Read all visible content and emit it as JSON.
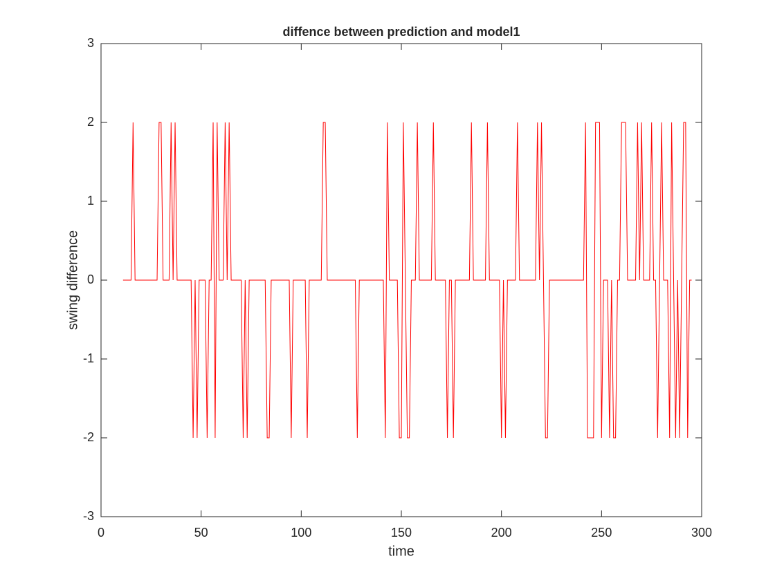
{
  "chart_data": {
    "type": "line",
    "title": "diffence between prediction and model1",
    "xlabel": "time",
    "ylabel": "swing difference",
    "x": [
      11,
      15,
      16,
      17,
      28,
      29,
      30,
      31,
      34,
      35,
      36,
      37,
      38,
      45,
      46,
      47,
      48,
      49,
      52,
      53,
      54,
      55,
      56,
      57,
      58,
      59,
      61,
      62,
      63,
      64,
      65,
      70,
      71,
      72,
      73,
      74,
      82,
      83,
      84,
      85,
      94,
      95,
      96,
      102,
      103,
      104,
      110,
      111,
      112,
      113,
      127,
      128,
      129,
      141,
      142,
      143,
      144,
      148,
      149,
      150,
      151,
      152,
      153,
      154,
      155,
      157,
      158,
      159,
      165,
      166,
      167,
      172,
      173,
      174,
      175,
      176,
      177,
      184,
      185,
      186,
      192,
      193,
      194,
      199,
      200,
      201,
      202,
      203,
      207,
      208,
      209,
      217,
      218,
      219,
      220,
      221,
      222,
      223,
      224,
      241,
      242,
      243,
      246,
      247,
      249,
      250,
      251,
      253,
      254,
      255,
      256,
      257,
      258,
      259,
      260,
      262,
      263,
      267,
      268,
      269,
      270,
      271,
      274,
      275,
      276,
      277,
      278,
      279,
      280,
      281,
      283,
      284,
      285,
      286,
      287,
      288,
      289,
      290,
      291,
      292,
      293,
      294,
      295
    ],
    "series": [
      {
        "color": "#ff0000",
        "values": [
          0,
          0,
          2,
          0,
          0,
          2,
          2,
          0,
          0,
          2,
          0,
          2,
          0,
          0,
          -2,
          0,
          -2,
          0,
          0,
          -2,
          0,
          0,
          2,
          -2,
          2,
          0,
          0,
          2,
          0,
          2,
          0,
          0,
          -2,
          0,
          -2,
          0,
          0,
          -2,
          -2,
          0,
          0,
          -2,
          0,
          0,
          -2,
          0,
          0,
          2,
          2,
          0,
          0,
          -2,
          0,
          0,
          -2,
          2,
          0,
          0,
          -2,
          -2,
          2,
          0,
          -2,
          -2,
          0,
          0,
          2,
          0,
          0,
          2,
          0,
          0,
          -2,
          0,
          0,
          -2,
          0,
          0,
          2,
          0,
          0,
          2,
          0,
          0,
          -2,
          0,
          -2,
          0,
          0,
          2,
          0,
          0,
          2,
          0,
          2,
          0,
          -2,
          -2,
          0,
          0,
          2,
          -2,
          -2,
          2,
          2,
          -2,
          0,
          0,
          -2,
          0,
          -2,
          -2,
          0,
          0,
          2,
          2,
          0,
          0,
          2,
          0,
          2,
          0,
          0,
          2,
          0,
          0,
          -2,
          0,
          2,
          0,
          0,
          -2,
          2,
          0,
          -2,
          0,
          -2,
          0,
          2,
          2,
          -2,
          0,
          0
        ]
      }
    ],
    "xlim": [
      0,
      300
    ],
    "xticks": [
      0,
      50,
      100,
      150,
      200,
      250,
      300
    ],
    "ylim": [
      -3,
      3
    ],
    "yticks": [
      -3,
      -2,
      -1,
      0,
      1,
      2,
      3
    ],
    "grid": false
  }
}
